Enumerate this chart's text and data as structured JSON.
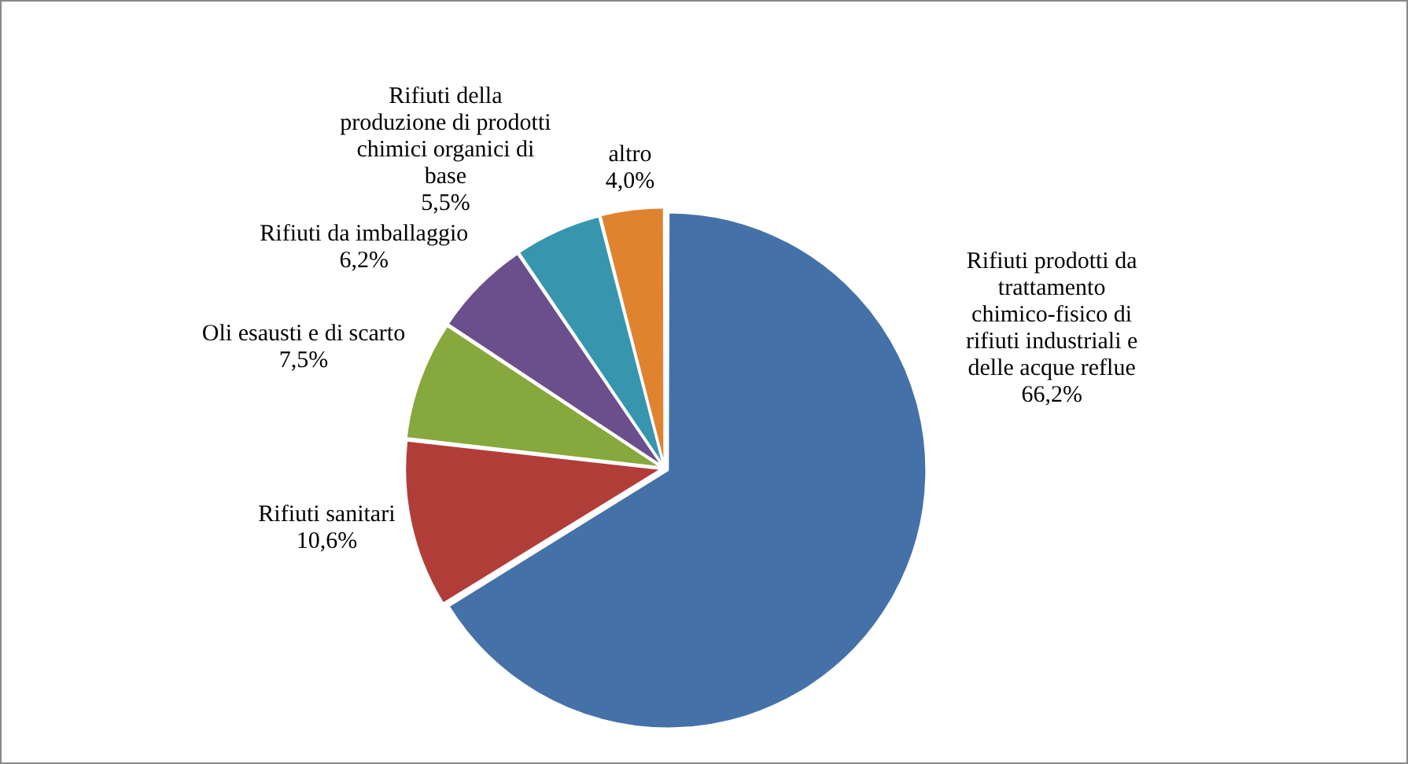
{
  "chart_data": {
    "type": "pie",
    "categories": [
      "Rifiuti prodotti da trattamento chimico-fisico di rifiuti industriali e delle acque reflue",
      "Rifiuti sanitari",
      "Oli esausti e di scarto",
      "Rifiuti da imballaggio",
      "Rifiuti della produzione di prodotti chimici organici di base",
      "altro"
    ],
    "values": [
      66.2,
      10.6,
      7.5,
      6.2,
      5.5,
      4.0
    ],
    "value_labels": [
      "66,2%",
      "10,6%",
      "7,5%",
      "6,2%",
      "5,5%",
      "4,0%"
    ],
    "colors": [
      "#4471a8",
      "#b13d39",
      "#87a83d",
      "#6b4f8d",
      "#3796ae",
      "#e0832f"
    ],
    "legend": false
  }
}
